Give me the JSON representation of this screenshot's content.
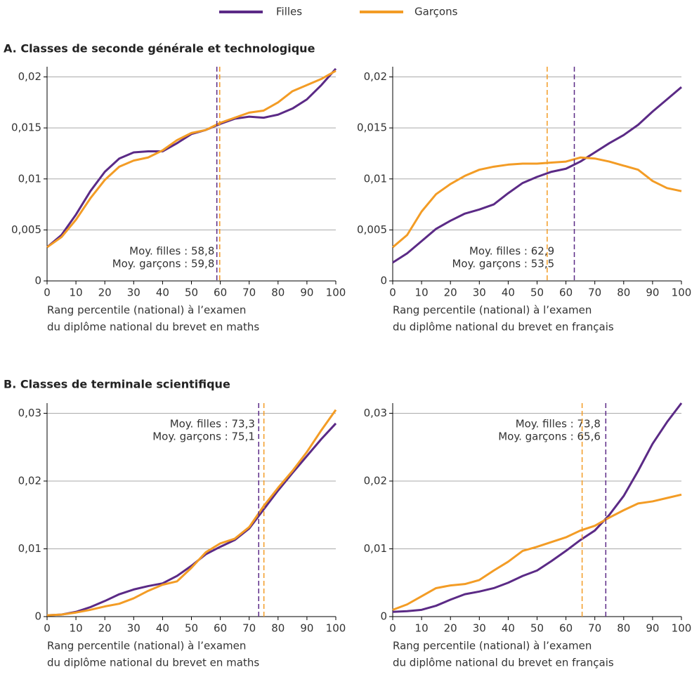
{
  "chart_data": [
    {
      "type": "line",
      "title": "A. Classes de seconde générale et technologique",
      "xlabel": [
        "Rang percentile (national) à l’examen",
        "du diplôme national du brevet en maths"
      ],
      "x": [
        0,
        5,
        10,
        15,
        20,
        25,
        30,
        35,
        40,
        45,
        50,
        55,
        60,
        65,
        70,
        75,
        80,
        85,
        90,
        95,
        100
      ],
      "xlim": [
        0,
        100
      ],
      "xticks": [
        0,
        10,
        20,
        30,
        40,
        50,
        60,
        70,
        80,
        90,
        100
      ],
      "ylim": [
        0,
        0.021
      ],
      "yticks": [
        0,
        {
          "value": 0.005,
          "label": "0,005"
        },
        {
          "value": 0.01,
          "label": "0,01"
        },
        {
          "value": 0.015,
          "label": "0,015"
        },
        {
          "value": 0.02,
          "label": "0,02"
        }
      ],
      "grid": true,
      "series": [
        {
          "name": "Filles",
          "color": "#5b2a86",
          "values": [
            0.0033,
            0.0045,
            0.0065,
            0.0088,
            0.0107,
            0.012,
            0.0126,
            0.0127,
            0.0127,
            0.0135,
            0.0144,
            0.0148,
            0.0154,
            0.0159,
            0.0161,
            0.016,
            0.0163,
            0.0169,
            0.0178,
            0.0192,
            0.0208
          ]
        },
        {
          "name": "Garçons",
          "color": "#f39c25",
          "values": [
            0.0033,
            0.0043,
            0.006,
            0.0081,
            0.0099,
            0.0112,
            0.0118,
            0.0121,
            0.0128,
            0.0138,
            0.0145,
            0.0148,
            0.0155,
            0.016,
            0.0165,
            0.0167,
            0.0175,
            0.0186,
            0.0192,
            0.0198,
            0.0206
          ]
        }
      ],
      "annotations": [
        {
          "text": "Moy. filles : 58,8",
          "x": 58.8,
          "color": "#5b2a86"
        },
        {
          "text": "Moy. garçons : 59,8",
          "x": 59.8,
          "color": "#f39c25"
        }
      ]
    },
    {
      "type": "line",
      "xlabel": [
        "Rang percentile (national) à l’examen",
        "du diplôme national du brevet en français"
      ],
      "x": [
        0,
        5,
        10,
        15,
        20,
        25,
        30,
        35,
        40,
        45,
        50,
        55,
        60,
        65,
        70,
        75,
        80,
        85,
        90,
        95,
        100
      ],
      "xlim": [
        0,
        100
      ],
      "xticks": [
        0,
        10,
        20,
        30,
        40,
        50,
        60,
        70,
        80,
        90,
        100
      ],
      "ylim": [
        0,
        0.021
      ],
      "yticks": [
        0,
        {
          "value": 0.005,
          "label": "0,005"
        },
        {
          "value": 0.01,
          "label": "0,01"
        },
        {
          "value": 0.015,
          "label": "0,015"
        },
        {
          "value": 0.02,
          "label": "0,02"
        }
      ],
      "grid": true,
      "series": [
        {
          "color": "#5b2a86",
          "values": [
            0.0018,
            0.0027,
            0.0039,
            0.0051,
            0.0059,
            0.0066,
            0.007,
            0.0075,
            0.0086,
            0.0096,
            0.0102,
            0.0107,
            0.011,
            0.0117,
            0.0126,
            0.0135,
            0.0143,
            0.0153,
            0.0166,
            0.0178,
            0.019
          ]
        },
        {
          "color": "#f39c25",
          "values": [
            0.0033,
            0.0045,
            0.0068,
            0.0085,
            0.0095,
            0.0103,
            0.0109,
            0.0112,
            0.0114,
            0.0115,
            0.0115,
            0.0116,
            0.0117,
            0.0121,
            0.012,
            0.0117,
            0.0113,
            0.0109,
            0.0098,
            0.0091,
            0.0088
          ]
        }
      ],
      "annotations": [
        {
          "text": "Moy. filles : 62,9",
          "x": 62.9,
          "color": "#5b2a86"
        },
        {
          "text": "Moy. garçons : 53,5",
          "x": 53.5,
          "color": "#f39c25"
        }
      ]
    },
    {
      "type": "line",
      "title": "B. Classes de terminale scientifique",
      "xlabel": [
        "Rang percentile (national) à l’examen",
        "du diplôme national du brevet en maths"
      ],
      "x": [
        0,
        5,
        10,
        15,
        20,
        25,
        30,
        35,
        40,
        45,
        50,
        55,
        60,
        65,
        70,
        75,
        80,
        85,
        90,
        95,
        100
      ],
      "xlim": [
        0,
        100
      ],
      "xticks": [
        0,
        10,
        20,
        30,
        40,
        50,
        60,
        70,
        80,
        90,
        100
      ],
      "ylim": [
        0,
        0.0315
      ],
      "yticks": [
        0,
        {
          "value": 0.01,
          "label": "0,01"
        },
        {
          "value": 0.02,
          "label": "0,02"
        },
        {
          "value": 0.03,
          "label": "0,03"
        }
      ],
      "grid": true,
      "series": [
        {
          "color": "#5b2a86",
          "values": [
            0.0002,
            0.0003,
            0.0007,
            0.0014,
            0.0023,
            0.0033,
            0.004,
            0.0045,
            0.0049,
            0.006,
            0.0075,
            0.0092,
            0.0103,
            0.0113,
            0.013,
            0.0158,
            0.0186,
            0.0212,
            0.0237,
            0.0262,
            0.0285
          ]
        },
        {
          "color": "#f39c25",
          "values": [
            0.0002,
            0.0003,
            0.0006,
            0.001,
            0.0015,
            0.0019,
            0.0027,
            0.0038,
            0.0047,
            0.0052,
            0.0072,
            0.0095,
            0.0108,
            0.0115,
            0.0132,
            0.0163,
            0.019,
            0.0215,
            0.0243,
            0.0275,
            0.0305
          ]
        }
      ],
      "annotations": [
        {
          "text": "Moy. filles : 73,3",
          "x": 73.3,
          "color": "#5b2a86"
        },
        {
          "text": "Moy. garçons : 75,1",
          "x": 75.1,
          "color": "#f39c25"
        }
      ]
    },
    {
      "type": "line",
      "xlabel": [
        "Rang percentile (national) à l’examen",
        "du diplôme national du brevet en français"
      ],
      "x": [
        0,
        5,
        10,
        15,
        20,
        25,
        30,
        35,
        40,
        45,
        50,
        55,
        60,
        65,
        70,
        75,
        80,
        85,
        90,
        95,
        100
      ],
      "xlim": [
        0,
        100
      ],
      "xticks": [
        0,
        10,
        20,
        30,
        40,
        50,
        60,
        70,
        80,
        90,
        100
      ],
      "ylim": [
        0,
        0.0315
      ],
      "yticks": [
        0,
        {
          "value": 0.01,
          "label": "0,01"
        },
        {
          "value": 0.02,
          "label": "0,02"
        },
        {
          "value": 0.03,
          "label": "0,03"
        }
      ],
      "grid": true,
      "series": [
        {
          "color": "#5b2a86",
          "values": [
            0.0007,
            0.0008,
            0.001,
            0.0016,
            0.0025,
            0.0033,
            0.0037,
            0.0042,
            0.005,
            0.006,
            0.0068,
            0.0082,
            0.0097,
            0.0113,
            0.0127,
            0.015,
            0.0178,
            0.0215,
            0.0255,
            0.0287,
            0.0315
          ]
        },
        {
          "color": "#f39c25",
          "values": [
            0.001,
            0.0018,
            0.003,
            0.0042,
            0.0046,
            0.0048,
            0.0054,
            0.0068,
            0.0081,
            0.0097,
            0.0103,
            0.011,
            0.0117,
            0.0127,
            0.0134,
            0.0146,
            0.0157,
            0.0167,
            0.017,
            0.0175,
            0.018
          ]
        }
      ],
      "annotations": [
        {
          "text": "Moy. filles : 73,8",
          "x": 73.8,
          "color": "#5b2a86"
        },
        {
          "text": "Moy. garçons : 65,6",
          "x": 65.6,
          "color": "#f39c25"
        }
      ]
    }
  ]
}
